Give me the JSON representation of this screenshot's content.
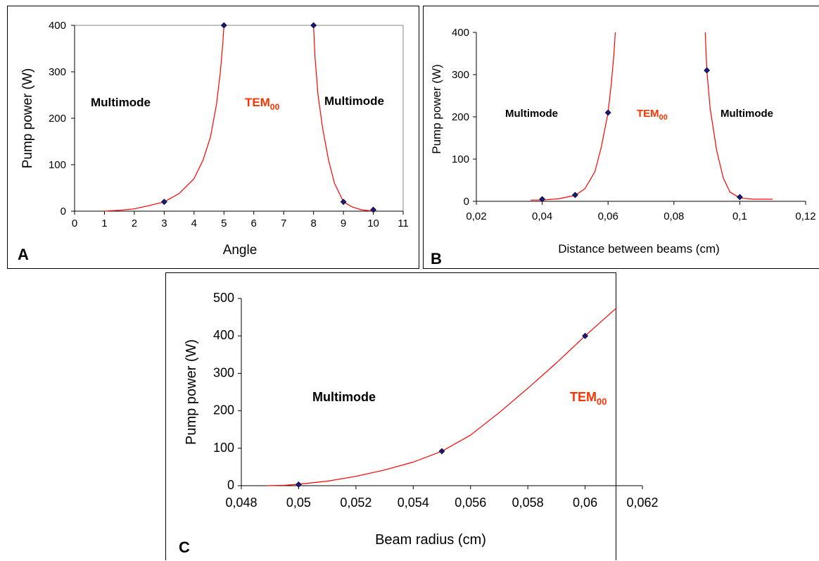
{
  "colors": {
    "curve": "#ff0000",
    "marker": "#1a1a80",
    "tem_label": "#ff3300"
  },
  "panels": [
    {
      "letter": "A",
      "region_left": "Multimode",
      "region_mid": "TEM",
      "region_mid_sub": "00",
      "region_right": "Multimode"
    },
    {
      "letter": "B",
      "region_left": "Multimode",
      "region_mid": "TEM",
      "region_mid_sub": "00",
      "region_right": "Multimode"
    },
    {
      "letter": "C",
      "region_left": "Multimode",
      "region_mid": "TEM",
      "region_mid_sub": "00"
    }
  ],
  "chart_data": [
    {
      "type": "scatter",
      "xlabel": "Angle",
      "ylabel": "Pump power (W)",
      "xlim": [
        0,
        11
      ],
      "ylim": [
        0,
        400
      ],
      "xticks": [
        "0",
        "1",
        "2",
        "3",
        "4",
        "5",
        "6",
        "7",
        "8",
        "9",
        "10",
        "11"
      ],
      "yticks": [
        "0",
        "100",
        "200",
        "300",
        "400"
      ],
      "points": [
        {
          "x": 3,
          "y": 20
        },
        {
          "x": 5,
          "y": 400
        },
        {
          "x": 8,
          "y": 400
        },
        {
          "x": 9,
          "y": 20
        },
        {
          "x": 10,
          "y": 3
        }
      ],
      "curves": [
        [
          [
            1,
            0
          ],
          [
            1.5,
            2
          ],
          [
            2,
            5
          ],
          [
            2.5,
            12
          ],
          [
            3,
            20
          ],
          [
            3.5,
            38
          ],
          [
            4,
            70
          ],
          [
            4.3,
            110
          ],
          [
            4.55,
            160
          ],
          [
            4.75,
            230
          ],
          [
            4.88,
            300
          ],
          [
            4.96,
            360
          ],
          [
            5,
            400
          ]
        ],
        [
          [
            8,
            400
          ],
          [
            8.05,
            330
          ],
          [
            8.15,
            250
          ],
          [
            8.3,
            180
          ],
          [
            8.5,
            110
          ],
          [
            8.7,
            60
          ],
          [
            9,
            20
          ],
          [
            9.3,
            9
          ],
          [
            9.6,
            3
          ],
          [
            10,
            0
          ]
        ]
      ]
    },
    {
      "type": "scatter",
      "xlabel": "Distance between beams (cm)",
      "ylabel": "Pump power (W)",
      "xlim": [
        0.02,
        0.12
      ],
      "ylim": [
        0,
        400
      ],
      "xticks": [
        "0,02",
        "0,04",
        "0,06",
        "0,08",
        "0,1",
        "0,12"
      ],
      "yticks": [
        "0",
        "100",
        "200",
        "300",
        "400"
      ],
      "points": [
        {
          "x": 0.04,
          "y": 5
        },
        {
          "x": 0.05,
          "y": 15
        },
        {
          "x": 0.06,
          "y": 210
        },
        {
          "x": 0.09,
          "y": 310
        },
        {
          "x": 0.1,
          "y": 10
        }
      ],
      "curves": [
        [
          [
            0.0365,
            3
          ],
          [
            0.04,
            3
          ],
          [
            0.045,
            6
          ],
          [
            0.05,
            14
          ],
          [
            0.053,
            30
          ],
          [
            0.056,
            70
          ],
          [
            0.058,
            130
          ],
          [
            0.06,
            210
          ],
          [
            0.061,
            280
          ],
          [
            0.0618,
            350
          ],
          [
            0.0622,
            400
          ]
        ],
        [
          [
            0.0895,
            400
          ],
          [
            0.09,
            310
          ],
          [
            0.091,
            220
          ],
          [
            0.093,
            120
          ],
          [
            0.095,
            55
          ],
          [
            0.097,
            22
          ],
          [
            0.1,
            8
          ],
          [
            0.104,
            5
          ],
          [
            0.11,
            5
          ]
        ]
      ]
    },
    {
      "type": "scatter",
      "xlabel": "Beam radius (cm)",
      "ylabel": "Pump power (W)",
      "xlim": [
        0.048,
        0.062
      ],
      "ylim": [
        0,
        500
      ],
      "xticks": [
        "0,048",
        "0,05",
        "0,052",
        "0,054",
        "0,056",
        "0,058",
        "0,06",
        "0,062"
      ],
      "yticks": [
        "0",
        "100",
        "200",
        "300",
        "400",
        "500"
      ],
      "points": [
        {
          "x": 0.05,
          "y": 3
        },
        {
          "x": 0.055,
          "y": 92
        },
        {
          "x": 0.06,
          "y": 400
        }
      ],
      "curves": [
        [
          [
            0.0489,
            0
          ],
          [
            0.0495,
            1
          ],
          [
            0.05,
            4
          ],
          [
            0.051,
            12
          ],
          [
            0.052,
            25
          ],
          [
            0.053,
            42
          ],
          [
            0.054,
            63
          ],
          [
            0.055,
            92
          ],
          [
            0.056,
            135
          ],
          [
            0.057,
            195
          ],
          [
            0.058,
            260
          ],
          [
            0.059,
            328
          ],
          [
            0.06,
            400
          ],
          [
            0.0611,
            475
          ]
        ]
      ]
    }
  ]
}
